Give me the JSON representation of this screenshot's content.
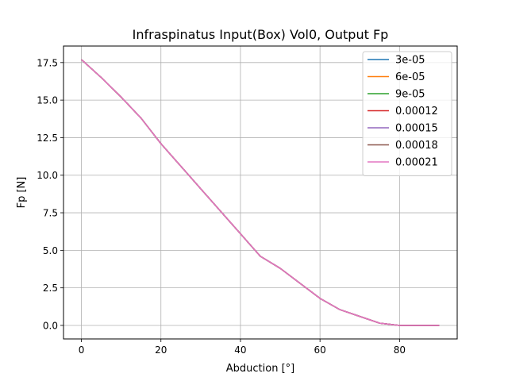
{
  "chart_data": {
    "type": "line",
    "title": "Infraspinatus Input(Box) Vol0, Output Fp",
    "xlabel": "Abduction [°]",
    "ylabel": "Fp [N]",
    "xlim": [
      -4.5,
      94.5
    ],
    "ylim": [
      -0.9,
      18.6
    ],
    "xticks": [
      0,
      20,
      40,
      60,
      80
    ],
    "xtick_labels": [
      "0",
      "20",
      "40",
      "60",
      "80"
    ],
    "yticks": [
      0,
      2.5,
      5,
      7.5,
      10,
      12.5,
      15,
      17.5
    ],
    "ytick_labels": [
      "0.0",
      "2.5",
      "5.0",
      "7.5",
      "10.0",
      "12.5",
      "15.0",
      "17.5"
    ],
    "grid": true,
    "legend_position": "upper right",
    "x": [
      0,
      5,
      10,
      15,
      20,
      25,
      30,
      35,
      40,
      45,
      50,
      55,
      60,
      65,
      70,
      75,
      80,
      85,
      90
    ],
    "series": [
      {
        "name": "3e-05",
        "color": "#1f77b4",
        "values": [
          17.7,
          16.5,
          15.2,
          13.8,
          12.1,
          10.6,
          9.1,
          7.6,
          6.1,
          4.6,
          3.8,
          2.8,
          1.8,
          1.05,
          0.6,
          0.15,
          0.0,
          0.0,
          0.0
        ]
      },
      {
        "name": "6e-05",
        "color": "#ff7f0e",
        "values": [
          17.7,
          16.5,
          15.2,
          13.8,
          12.1,
          10.6,
          9.1,
          7.6,
          6.1,
          4.6,
          3.8,
          2.8,
          1.8,
          1.05,
          0.6,
          0.15,
          0.0,
          0.0,
          0.0
        ]
      },
      {
        "name": "9e-05",
        "color": "#2ca02c",
        "values": [
          17.7,
          16.5,
          15.2,
          13.8,
          12.1,
          10.6,
          9.1,
          7.6,
          6.1,
          4.6,
          3.8,
          2.8,
          1.8,
          1.05,
          0.6,
          0.15,
          0.0,
          0.0,
          0.0
        ]
      },
      {
        "name": "0.00012",
        "color": "#d62728",
        "values": [
          17.7,
          16.5,
          15.2,
          13.8,
          12.1,
          10.6,
          9.1,
          7.6,
          6.1,
          4.6,
          3.8,
          2.8,
          1.8,
          1.05,
          0.6,
          0.15,
          0.0,
          0.0,
          0.0
        ]
      },
      {
        "name": "0.00015",
        "color": "#9467bd",
        "values": [
          17.7,
          16.5,
          15.2,
          13.8,
          12.1,
          10.6,
          9.1,
          7.6,
          6.1,
          4.6,
          3.8,
          2.8,
          1.8,
          1.05,
          0.6,
          0.15,
          0.0,
          0.0,
          0.0
        ]
      },
      {
        "name": "0.00018",
        "color": "#8c564b",
        "values": [
          17.7,
          16.5,
          15.2,
          13.8,
          12.1,
          10.6,
          9.1,
          7.6,
          6.1,
          4.6,
          3.8,
          2.8,
          1.8,
          1.05,
          0.6,
          0.15,
          0.0,
          0.0,
          0.0
        ]
      },
      {
        "name": "0.00021",
        "color": "#e377c2",
        "values": [
          17.7,
          16.5,
          15.2,
          13.8,
          12.1,
          10.6,
          9.1,
          7.6,
          6.1,
          4.6,
          3.8,
          2.8,
          1.8,
          1.05,
          0.6,
          0.15,
          0.0,
          0.0,
          0.0
        ]
      }
    ]
  }
}
